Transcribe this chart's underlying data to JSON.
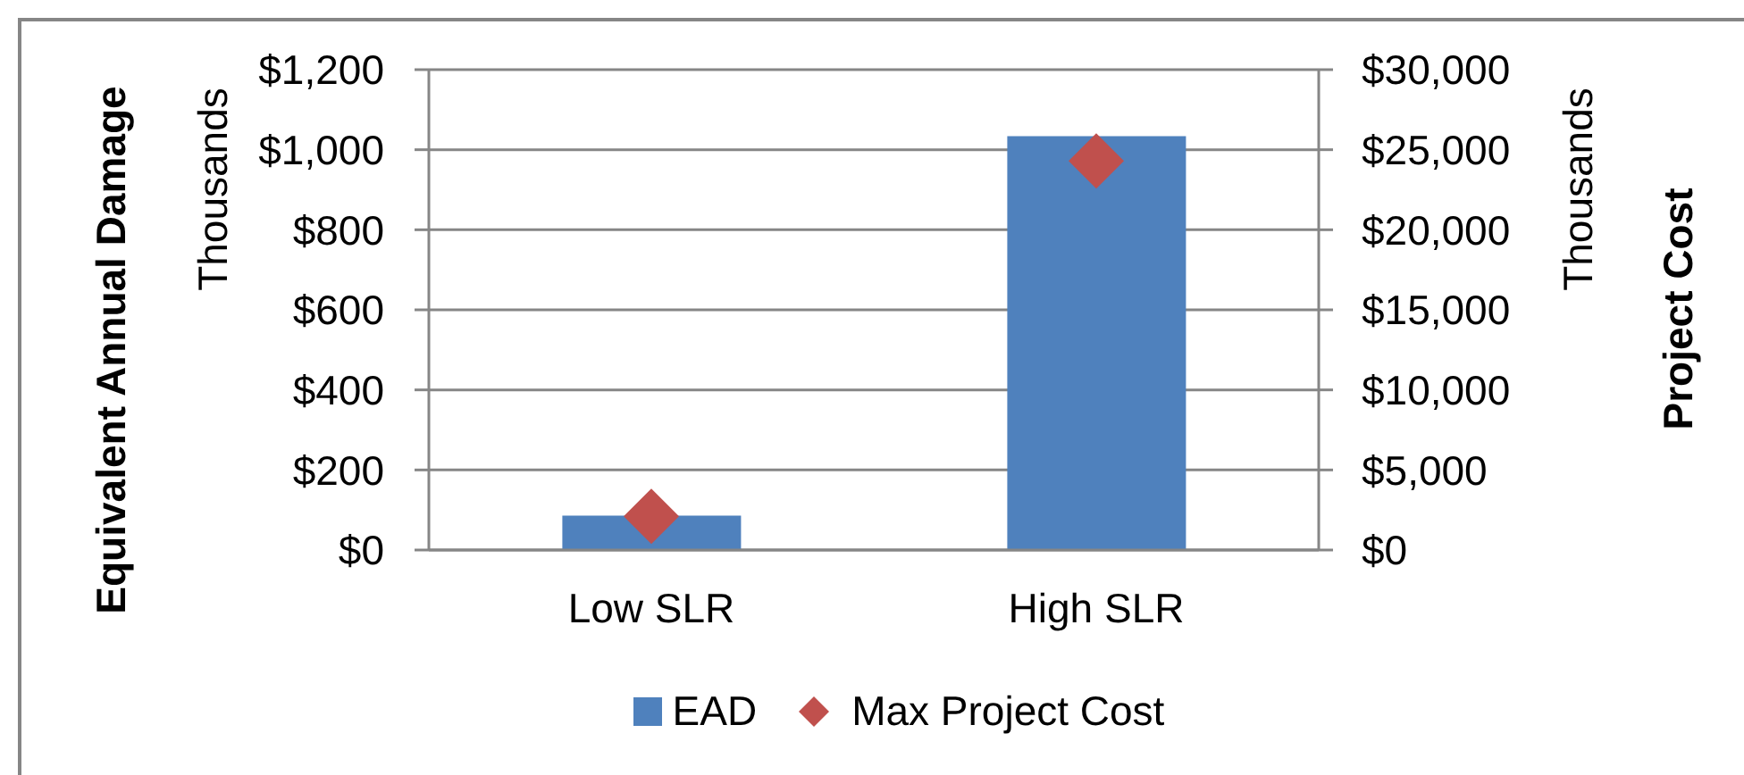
{
  "chart_data": {
    "type": "bar",
    "ylabel": "Equivalent Annual Damage",
    "y2label": "Project Cost",
    "annotations": [
      "Thousands",
      "Thousands"
    ],
    "categories": [
      "Low SLR",
      "High SLR"
    ],
    "series": [
      {
        "name": "EAD",
        "color": "#4f81bd",
        "values": [
          86,
          1034
        ]
      },
      {
        "name": "Max Project Cost",
        "type": "scatter",
        "axis": "y2",
        "color": "#c0504d",
        "values": [
          2100,
          24300
        ]
      }
    ],
    "ylim": [
      0,
      1200
    ],
    "yticks": [
      {
        "value": 0,
        "label": "$0"
      },
      {
        "value": 200,
        "label": "$200"
      },
      {
        "value": 400,
        "label": "$400"
      },
      {
        "value": 600,
        "label": "$600"
      },
      {
        "value": 800,
        "label": "$800"
      },
      {
        "value": 1000,
        "label": "$1,000"
      },
      {
        "value": 1200,
        "label": "$1,200"
      }
    ],
    "y2lim": [
      0,
      30000
    ],
    "y2ticks": [
      {
        "value": 0,
        "label": "$0"
      },
      {
        "value": 5000,
        "label": "$5,000"
      },
      {
        "value": 10000,
        "label": "$10,000"
      },
      {
        "value": 15000,
        "label": "$15,000"
      },
      {
        "value": 20000,
        "label": "$20,000"
      },
      {
        "value": 25000,
        "label": "$25,000"
      },
      {
        "value": 30000,
        "label": "$30,000"
      }
    ],
    "grid": "y",
    "legend": "bottom",
    "marker": "diamond"
  }
}
